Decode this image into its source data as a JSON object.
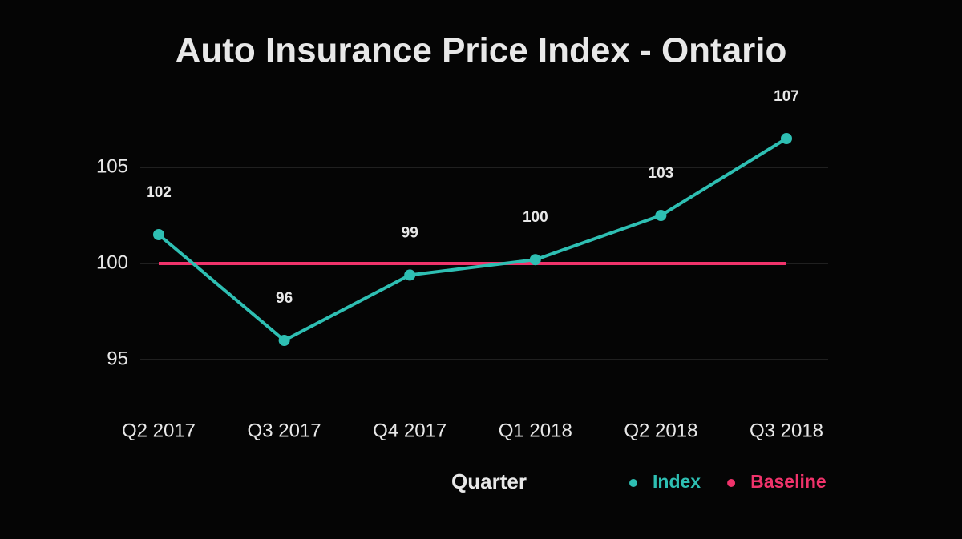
{
  "chart_data": {
    "type": "line",
    "title": "Auto Insurance Price Index - Ontario",
    "x_label": "Quarter",
    "categories": [
      "Q2 2017",
      "Q3 2017",
      "Q4 2017",
      "Q1 2018",
      "Q2 2018",
      "Q3 2018"
    ],
    "series": [
      {
        "name": "Index",
        "color": "#2ebfb3",
        "markers": true,
        "values": [
          101.5,
          96,
          99.4,
          100.2,
          102.5,
          106.5
        ],
        "value_labels": [
          "102",
          "96",
          "99",
          "100",
          "103",
          "107"
        ]
      },
      {
        "name": "Baseline",
        "color": "#f0336b",
        "markers": false,
        "values": [
          100,
          100,
          100,
          100,
          100,
          100
        ]
      }
    ],
    "ylim": [
      93,
      108
    ],
    "yticks": [
      95,
      100,
      105
    ],
    "grid": true,
    "legend": "bottom-right"
  }
}
